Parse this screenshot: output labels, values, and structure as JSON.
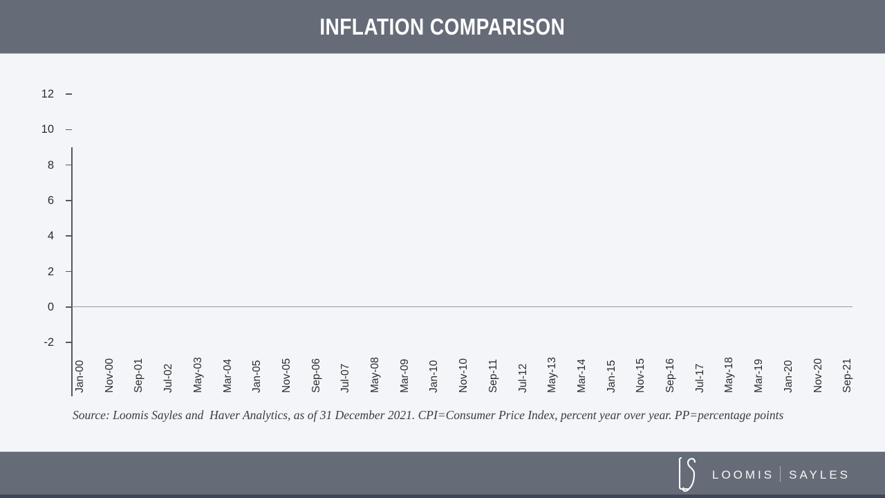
{
  "header": {
    "title": "INFLATION COMPARISON"
  },
  "chart_data": {
    "type": "line",
    "title": "INFLATION COMPARISON",
    "xlabel": "",
    "ylabel": "",
    "ylim": [
      -2,
      12
    ],
    "y_tick_labels": [
      "12",
      "10",
      "8",
      "6",
      "4",
      "2",
      "0",
      "-2"
    ],
    "x_tick_labels": [
      "Jan-00",
      "Nov-00",
      "Sep-01",
      "Jul-02",
      "May-03",
      "Mar-04",
      "Jan-05",
      "Nov-05",
      "Sep-06",
      "Jul-07",
      "May-08",
      "Mar-09",
      "Jan-10",
      "Nov-10",
      "Sep-11",
      "Jul-12",
      "May-13",
      "Mar-14",
      "Jan-15",
      "Nov-15",
      "Sep-16",
      "Jul-17",
      "May-18",
      "Mar-19",
      "Jan-20",
      "Nov-20",
      "Sep-21"
    ],
    "series": [],
    "grid": false,
    "legend": false,
    "zero_baseline": true
  },
  "source_note": "Source: Loomis Sayles and  Haver Analytics, as of 31 December 2021. CPI=Consumer Price Index, percent year over year. PP=percentage points",
  "footer": {
    "monogram": "LS",
    "brand_left": "LOOMIS",
    "brand_right": "SAYLES"
  },
  "colors": {
    "band_slate": "#666c77",
    "accent_strip": "#404659",
    "background": "#f4f5f9",
    "axis": "#55565a",
    "zero_line": "#9a9a9a",
    "tick_text": "#2b2b2b",
    "title_text": "#ffffff"
  }
}
